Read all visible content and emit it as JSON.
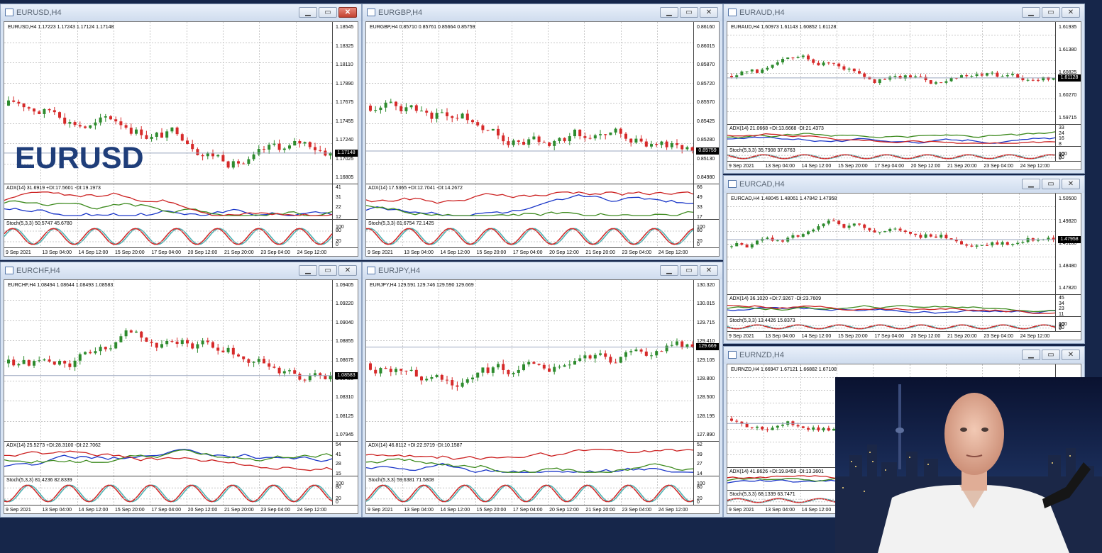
{
  "colors": {
    "bull": "#2e8b2e",
    "bear": "#d62a2a",
    "adx_main": "#1a36c8",
    "adx_plus": "#3d8a1e",
    "adx_minus": "#cc2222",
    "stoch_main": "#4fb3b3",
    "stoch_signal": "#d12a2a"
  },
  "watermark": "EURUSD",
  "time_labels": [
    "9 Sep 2021",
    "13 Sep 04:00",
    "14 Sep 12:00",
    "15 Sep 20:00",
    "17 Sep 04:00",
    "20 Sep 12:00",
    "21 Sep 20:00",
    "23 Sep 04:00",
    "24 Sep 12:00"
  ],
  "charts": [
    {
      "title": "EURUSD,H4",
      "header": "EURUSD,H4  1.17223 1.17243 1.17124 1.17148",
      "prices": [
        "1.18545",
        "1.18325",
        "1.18110",
        "1.17890",
        "1.17675",
        "1.17455",
        "1.17240",
        "1.17025",
        "1.16805"
      ],
      "current": "1.17148",
      "adx": "ADX(14) 31.6919 +DI:17.5601 -DI:19.1973",
      "adx_levels": [
        "41",
        "31",
        "22",
        "12"
      ],
      "stoch": "Stoch(5,3,3) 50.5747 45.6780",
      "stoch_levels": [
        "100",
        "80",
        "20",
        "0"
      ]
    },
    {
      "title": "EURGBP,H4",
      "header": "EURGBP,H4  0.85710 0.85761 0.85664 0.85759",
      "prices": [
        "0.86160",
        "0.86015",
        "0.85870",
        "0.85720",
        "0.85570",
        "0.85425",
        "0.85280",
        "0.85130",
        "0.84980"
      ],
      "current": "0.85759",
      "adx": "ADX(14) 17.5365 +DI:12.7041 -DI:14.2672",
      "adx_levels": [
        "66",
        "49",
        "33",
        "17"
      ],
      "stoch": "Stoch(5,3,3) 81.6754 72.1425",
      "stoch_levels": [
        "100",
        "80",
        "20",
        "0"
      ]
    },
    {
      "title": "EURAUD,H4",
      "header": "EURAUD,H4  1.60973 1.61143 1.60852 1.61128",
      "prices": [
        "1.61935",
        "1.61380",
        "1.60825",
        "1.60270",
        "1.59715"
      ],
      "current": "1.61128",
      "adx": "ADX(14) 21.0668 +DI:13.6668 -DI:21.4373",
      "adx_levels": [
        "33",
        "24",
        "16",
        "8"
      ],
      "stoch": "Stoch(5,3,3) 35.7908 37.8763",
      "stoch_levels": [
        "100",
        "80",
        "20",
        "0"
      ]
    },
    {
      "title": "EURCAD,H4",
      "header": "EURCAD,H4  1.48045 1.48061 1.47842 1.47958",
      "prices": [
        "1.50500",
        "1.49820",
        "1.49160",
        "1.48480",
        "1.47820"
      ],
      "current": "1.47958",
      "adx": "ADX(14) 36.1020 +DI:7.9267 -DI:23.7609",
      "adx_levels": [
        "45",
        "34",
        "23",
        "11"
      ],
      "stoch": "Stoch(5,3,3) 13.4426 15.8373",
      "stoch_levels": [
        "100",
        "80",
        "20",
        "0"
      ]
    },
    {
      "title": "EURCHF,H4",
      "header": "EURCHF,H4  1.08494 1.08644 1.08493 1.08583",
      "prices": [
        "1.09405",
        "1.09220",
        "1.09040",
        "1.08855",
        "1.08675",
        "1.08490",
        "1.08310",
        "1.08125",
        "1.07945"
      ],
      "current": "1.08583",
      "adx": "ADX(14) 25.5273 +DI:28.3100 -DI:22.7062",
      "adx_levels": [
        "54",
        "41",
        "28",
        "15"
      ],
      "stoch": "Stoch(5,3,3) 81.4236 82.8339",
      "stoch_levels": [
        "100",
        "80",
        "20",
        "0"
      ]
    },
    {
      "title": "EURJPY,H4",
      "header": "EURJPY,H4  129.591 129.746 129.590 129.669",
      "prices": [
        "130.320",
        "130.015",
        "129.715",
        "129.410",
        "129.105",
        "128.800",
        "128.500",
        "128.195",
        "127.890"
      ],
      "current": "129.669",
      "adx": "ADX(14) 46.8112 +DI:22.9719 -DI:10.1587",
      "adx_levels": [
        "52",
        "39",
        "27",
        "14"
      ],
      "stoch": "Stoch(5,3,3) 59.6381 71.5808",
      "stoch_levels": [
        "100",
        "80",
        "20",
        "0"
      ]
    },
    {
      "title": "EURNZD,H4",
      "header": "EURNZD,H4  1.66947 1.67121 1.66882 1.67108",
      "prices": [],
      "current": "",
      "adx": "ADX(14) 41.8626 +DI:19.8459 -DI:13.3601",
      "adx_levels": [],
      "stoch": "Stoch(5,3,3) 68.1339 63.7471",
      "stoch_levels": []
    }
  ]
}
